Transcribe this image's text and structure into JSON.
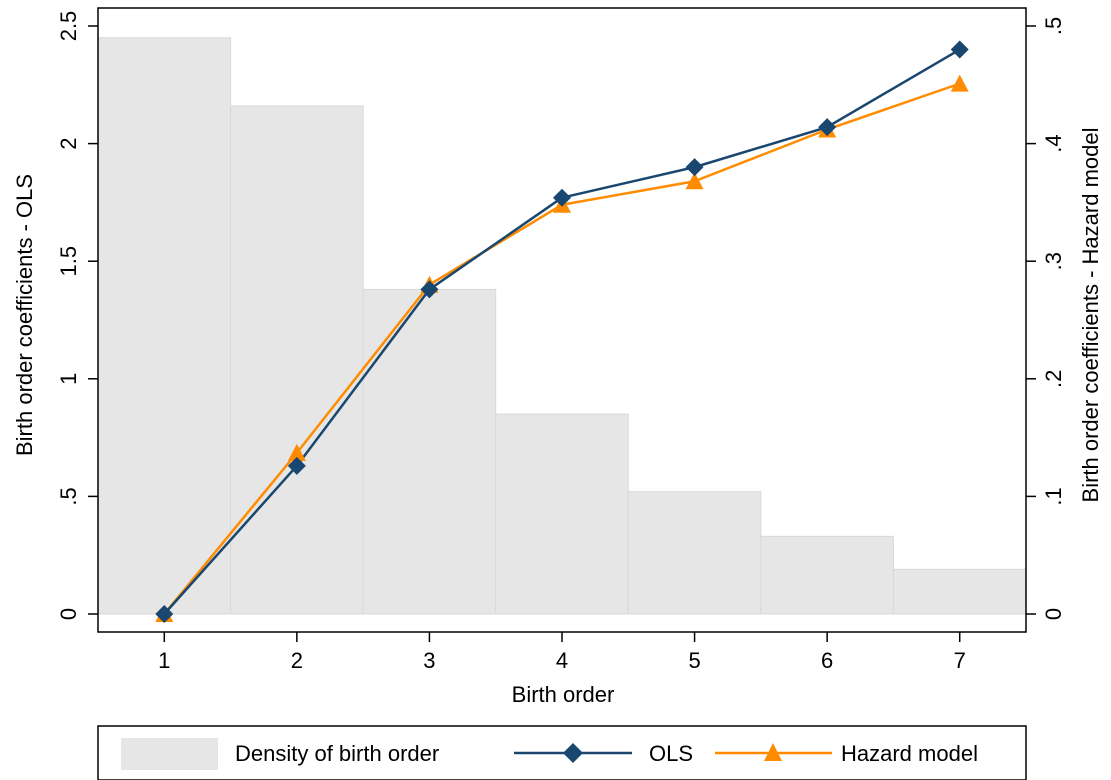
{
  "chart_data": {
    "type": "bar+line",
    "x_axis": {
      "label": "Birth order",
      "ticks": [
        1,
        2,
        3,
        4,
        5,
        6,
        7
      ],
      "range": [
        0.5,
        7.5
      ]
    },
    "y_left": {
      "label": "Birth order coefficients - OLS",
      "ticks": [
        0,
        0.5,
        1,
        1.5,
        2,
        2.5
      ],
      "tick_labels": [
        "0",
        ".5",
        "1",
        "1.5",
        "2",
        "2.5"
      ],
      "range": [
        0,
        2.5
      ]
    },
    "y_right": {
      "label": "Birth order coefficients - Hazard model",
      "ticks": [
        0,
        0.1,
        0.2,
        0.3,
        0.4,
        0.5
      ],
      "tick_labels": [
        "0",
        ".1",
        ".2",
        ".3",
        ".4",
        ".5"
      ],
      "range": [
        0,
        0.5
      ]
    },
    "density": {
      "name": "Density of birth order",
      "axis": "left",
      "x": [
        1,
        2,
        3,
        4,
        5,
        6,
        7
      ],
      "values": [
        2.45,
        2.16,
        1.38,
        0.85,
        0.52,
        0.33,
        0.19
      ],
      "color": "#e6e6e6"
    },
    "series": [
      {
        "name": "OLS",
        "axis": "left",
        "marker": "diamond",
        "color": "#1a476f",
        "x": [
          1,
          2,
          3,
          4,
          5,
          6,
          7
        ],
        "values": [
          0.0,
          0.63,
          1.38,
          1.77,
          1.9,
          2.07,
          2.4
        ]
      },
      {
        "name": "Hazard model",
        "axis": "right",
        "marker": "triangle",
        "color": "#ff8c00",
        "x": [
          1,
          2,
          3,
          4,
          5,
          6,
          7
        ],
        "values": [
          0.0,
          0.137,
          0.28,
          0.348,
          0.368,
          0.412,
          0.451
        ]
      }
    ],
    "grid": false,
    "legend_position": "bottom"
  }
}
